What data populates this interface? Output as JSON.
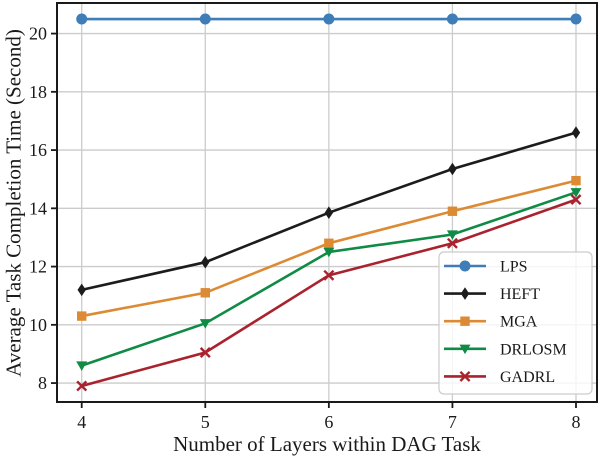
{
  "chart_data": {
    "type": "line",
    "xlabel": "Number of Layers within DAG Task",
    "ylabel": "Average Task Completion Time (Second)",
    "x": [
      4,
      5,
      6,
      7,
      8
    ],
    "xticks": [
      4,
      5,
      6,
      7,
      8
    ],
    "yticks": [
      8,
      10,
      12,
      14,
      16,
      18,
      20
    ],
    "xlim": [
      3.8,
      8.17
    ],
    "ylim": [
      7.35,
      21.05
    ],
    "grid": true,
    "grid_color": "#cccccc",
    "axis_color": "#1a1a1a",
    "legend_position": "lower right",
    "legend_bg": "#ffffff",
    "legend_border_color": "#cccccc",
    "series": [
      {
        "name": "LPS",
        "color": "#3e7db8",
        "marker": "circle",
        "values": [
          20.5,
          20.5,
          20.5,
          20.5,
          20.5
        ]
      },
      {
        "name": "HEFT",
        "color": "#1c1c1c",
        "marker": "diamond",
        "values": [
          11.2,
          12.15,
          13.85,
          15.35,
          16.6
        ]
      },
      {
        "name": "MGA",
        "color": "#dc8a33",
        "marker": "square",
        "values": [
          10.3,
          11.1,
          12.8,
          13.9,
          14.95
        ]
      },
      {
        "name": "DRLOSM",
        "color": "#0f8b45",
        "marker": "triangle-down",
        "values": [
          8.6,
          10.05,
          12.5,
          13.1,
          14.55
        ]
      },
      {
        "name": "GADRL",
        "color": "#a9232e",
        "marker": "x",
        "values": [
          7.9,
          9.05,
          11.7,
          12.8,
          14.3
        ]
      }
    ]
  }
}
